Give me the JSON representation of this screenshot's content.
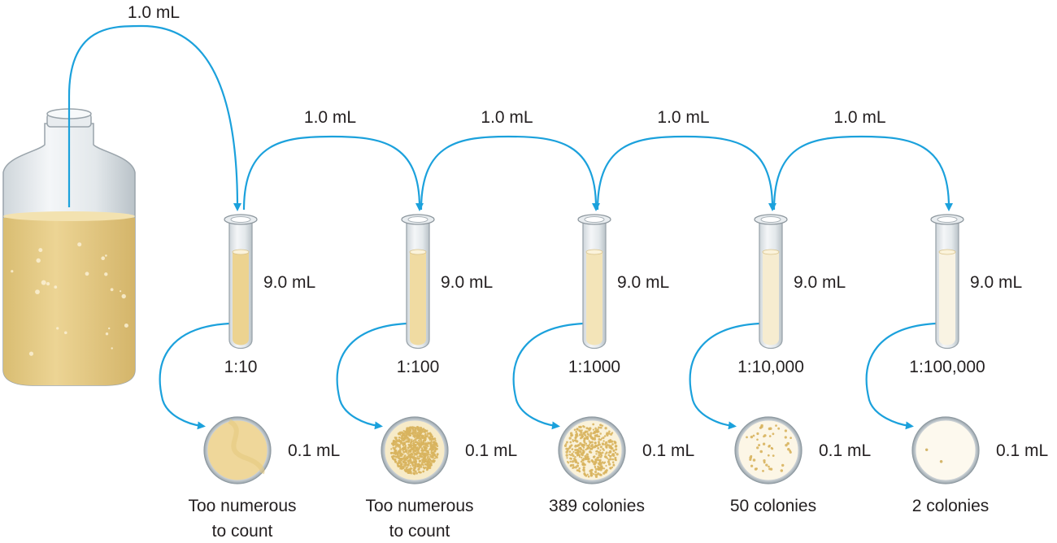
{
  "colors": {
    "arrow": "#1ba1dc",
    "broth": "#e8cf8c",
    "glass": "#eef1f3",
    "text": "#231f20"
  },
  "stock_transfer_label": "1.0 mL",
  "transfer_labels": [
    "1.0 mL",
    "1.0 mL",
    "1.0 mL",
    "1.0 mL"
  ],
  "tubes": [
    {
      "volume": "9.0 mL",
      "dilution": "1:10",
      "fill_color": "#ecd390"
    },
    {
      "volume": "9.0 mL",
      "dilution": "1:100",
      "fill_color": "#f0dba2"
    },
    {
      "volume": "9.0 mL",
      "dilution": "1:1000",
      "fill_color": "#f3e4b8"
    },
    {
      "volume": "9.0 mL",
      "dilution": "1:10,000",
      "fill_color": "#f6ecd0"
    },
    {
      "volume": "9.0 mL",
      "dilution": "1:100,000",
      "fill_color": "#f9f3e3"
    }
  ],
  "plates": [
    {
      "volume": "0.1 mL",
      "result": [
        "Too numerous",
        "to count"
      ],
      "colony_count": 0,
      "lawn": true,
      "fill_color": "#efd79a"
    },
    {
      "volume": "0.1 mL",
      "result": [
        "Too numerous",
        "to count"
      ],
      "colony_count": 900,
      "lawn": false,
      "fill_color": "#f7ebc8"
    },
    {
      "volume": "0.1 mL",
      "result": [
        "389 colonies"
      ],
      "colony_count": 389,
      "lawn": false,
      "fill_color": "#faf2da"
    },
    {
      "volume": "0.1 mL",
      "result": [
        "50 colonies"
      ],
      "colony_count": 50,
      "lawn": false,
      "fill_color": "#fcf6e6"
    },
    {
      "volume": "0.1 mL",
      "result": [
        "2 colonies"
      ],
      "colony_count": 2,
      "lawn": false,
      "fill_color": "#fdf9ee"
    }
  ]
}
